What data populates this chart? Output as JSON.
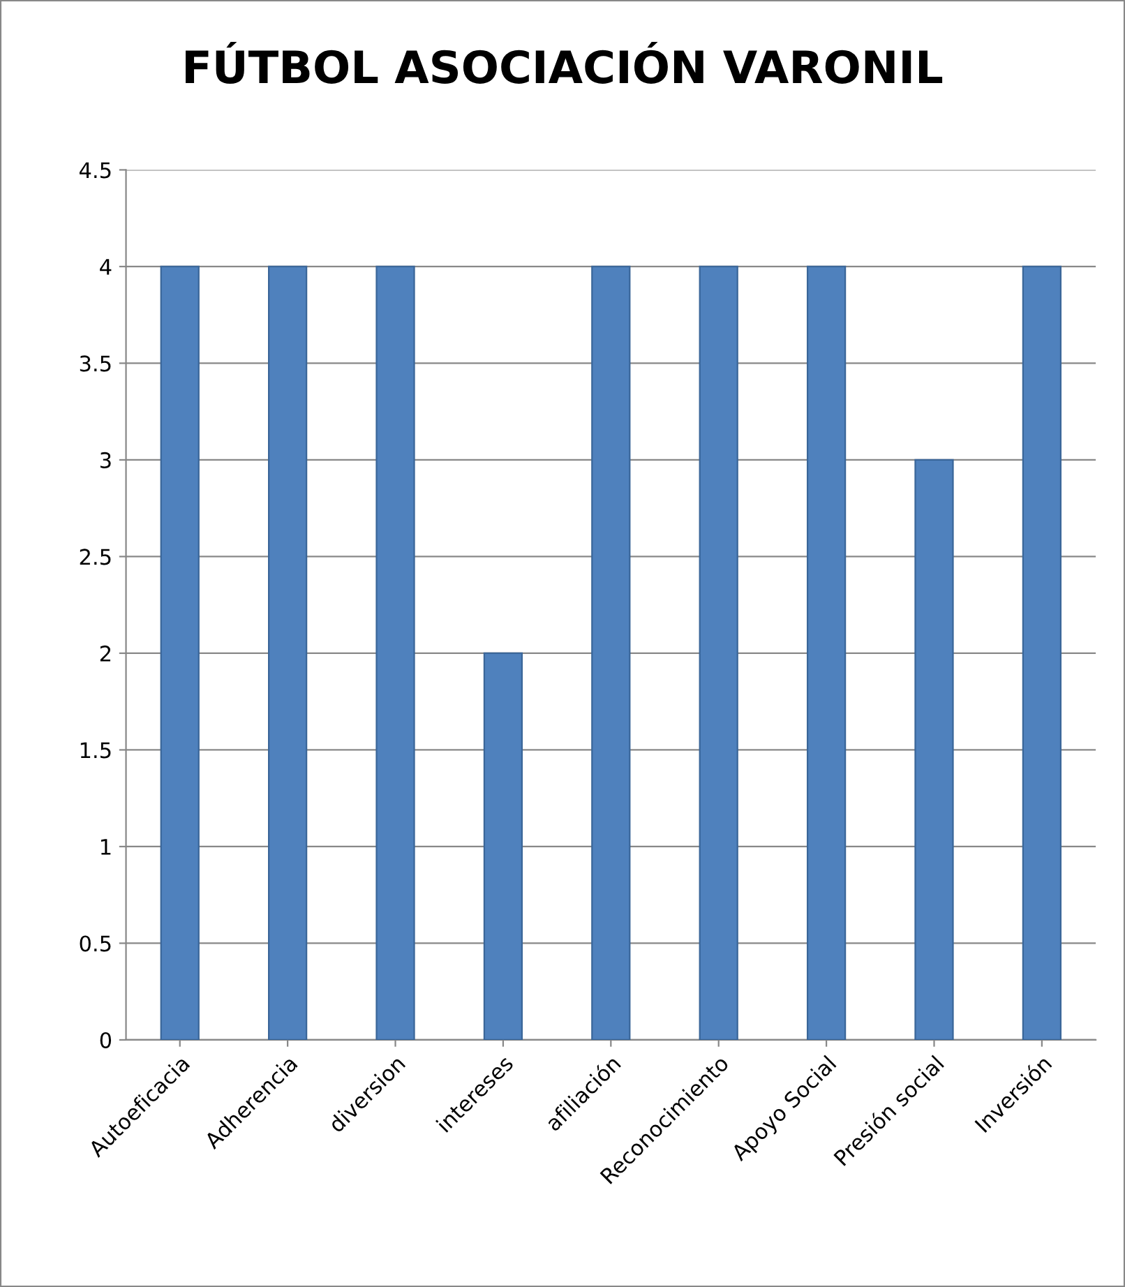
{
  "chart_data": {
    "type": "bar",
    "title": "FÚTBOL ASOCIACIÓN VARONIL",
    "categories": [
      "Autoeficacia",
      "Adherencia",
      "diversion",
      "intereses",
      "afiliación",
      "Reconocimiento",
      "Apoyo Social",
      "Presión social",
      "Inversión"
    ],
    "values": [
      4,
      4,
      4,
      2,
      4,
      4,
      4,
      3,
      4
    ],
    "color": "#4f81bd",
    "ylim": [
      0,
      4.5
    ],
    "yticks": [
      0,
      0.5,
      1,
      1.5,
      2,
      2.5,
      3,
      3.5,
      4,
      4.5
    ],
    "grid": "y",
    "legend": false
  }
}
